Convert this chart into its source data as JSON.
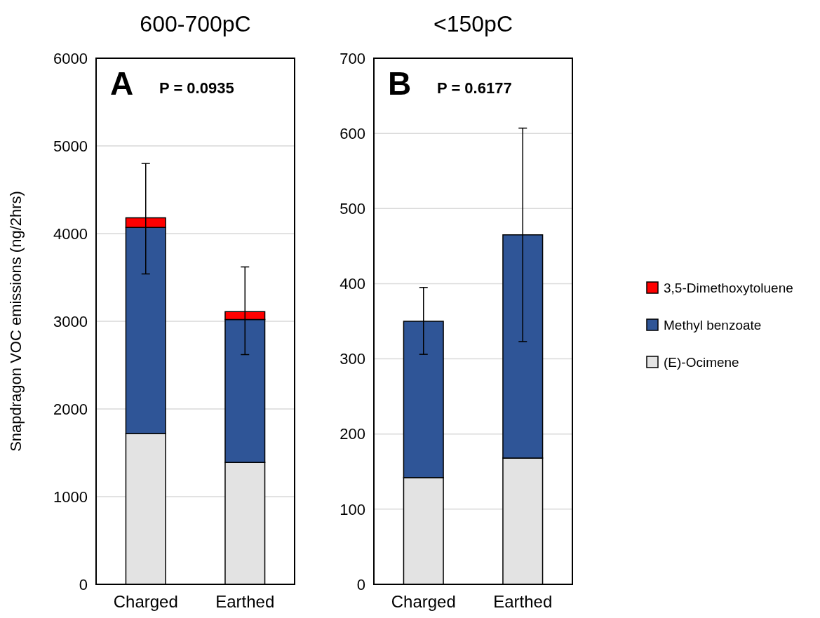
{
  "chart_data": [
    {
      "type": "bar",
      "title": "600-700pC",
      "ylabel": "Snapdragon VOC emissions (ng/2hrs)",
      "categories": [
        "Charged",
        "Earthed"
      ],
      "stacked": true,
      "ylim": [
        0,
        6000
      ],
      "yticks": [
        0,
        1000,
        2000,
        3000,
        4000,
        5000,
        6000
      ],
      "grid": "y",
      "legend": false,
      "annotations": [
        "A",
        "P = 0.0935"
      ],
      "series": [
        {
          "color": "#e3e3e3",
          "values": [
            1720,
            1390
          ]
        },
        {
          "color": "#2f5597",
          "values": [
            2350,
            1630
          ]
        },
        {
          "color": "#ff0000",
          "values": [
            110,
            90
          ],
          "errors": [
            [
              3540,
              4800
            ],
            [
              2620,
              3620
            ]
          ]
        }
      ]
    },
    {
      "type": "bar",
      "title": "<150pC",
      "categories": [
        "Charged",
        "Earthed"
      ],
      "stacked": true,
      "ylim": [
        0,
        700
      ],
      "yticks": [
        0,
        100,
        200,
        300,
        400,
        500,
        600,
        700
      ],
      "grid": "y",
      "legend": "right",
      "annotations": [
        "B",
        "P = 0.6177"
      ],
      "series": [
        {
          "name": "(E)-Ocimene",
          "color": "#e3e3e3",
          "values": [
            142,
            168
          ]
        },
        {
          "name": "Methyl benzoate",
          "color": "#2f5597",
          "values": [
            208,
            297
          ],
          "errors": [
            [
              306,
              395
            ],
            [
              323,
              607
            ]
          ]
        },
        {
          "name": "3,5-Dimethoxytoluene",
          "color": "#ff0000",
          "values": [
            null,
            null
          ]
        }
      ]
    }
  ]
}
